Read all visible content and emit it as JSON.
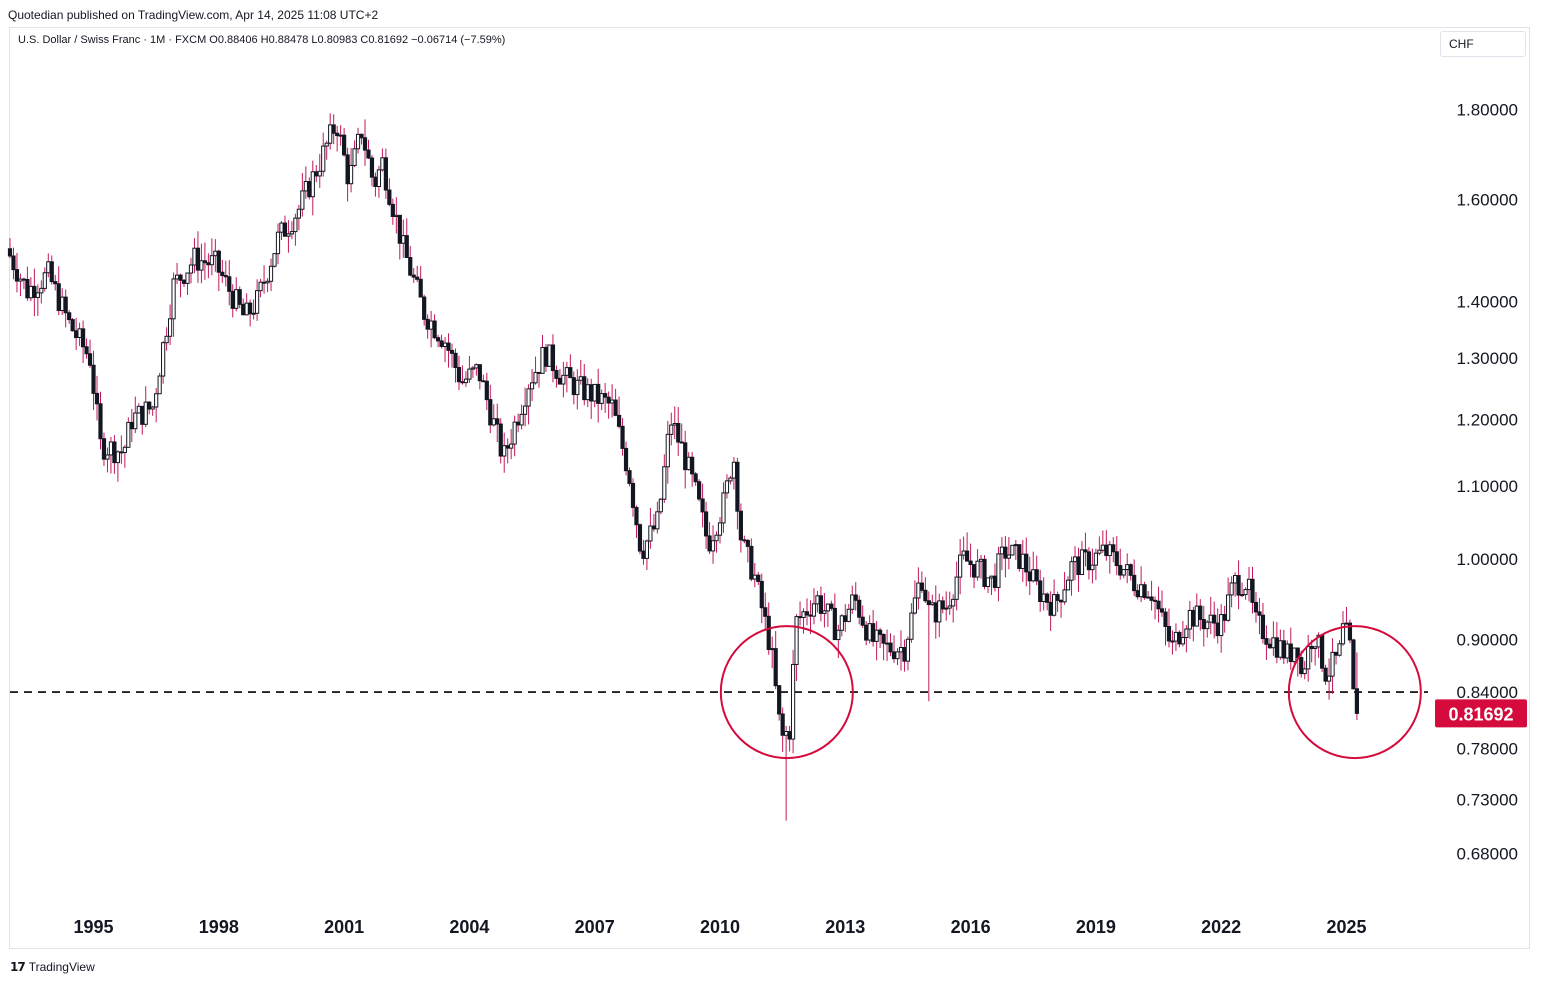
{
  "header": {
    "published": "Quotedian published on TradingView.com, Apr 14, 2025 11:08 UTC+2"
  },
  "legend": {
    "text": "U.S. Dollar / Swiss Franc · 1M · FXCM  O0.88406  H0.88478  L0.80983  C0.81692  −0.06714 (−7.59%)"
  },
  "currency": "CHF",
  "footer": {
    "logo": "17",
    "brand": "TradingView"
  },
  "colors": {
    "candle": "#131722",
    "wick": "#c2185b",
    "price_label": "#d50b3e",
    "circle": "#d50b3e",
    "level_line": "#000000"
  },
  "chart_data": {
    "type": "candlestick",
    "symbol": "USDCHF",
    "interval": "1M",
    "yscale": "log",
    "ylim": [
      0.64,
      1.92
    ],
    "xlim": [
      1993.0,
      2027.0
    ],
    "yticks": [
      1.8,
      1.6,
      1.4,
      1.3,
      1.2,
      1.1,
      1.0,
      0.9,
      0.84,
      0.78,
      0.73,
      0.68
    ],
    "ytick_labels": [
      "1.80000",
      "1.60000",
      "1.40000",
      "1.30000",
      "1.20000",
      "1.10000",
      "1.00000",
      "0.90000",
      "0.84000",
      "0.78000",
      "0.73000",
      "0.68000"
    ],
    "xticks": [
      1995,
      1998,
      2001,
      2004,
      2007,
      2010,
      2013,
      2016,
      2019,
      2022,
      2025
    ],
    "xtick_labels": [
      "1995",
      "1998",
      "2001",
      "2004",
      "2007",
      "2010",
      "2013",
      "2016",
      "2019",
      "2022",
      "2025"
    ],
    "last_price_label": "0.81692",
    "last_price": 0.81692,
    "horizontal_line": {
      "value": 0.84,
      "style": "dashed"
    },
    "circles": [
      {
        "t": 2011.6,
        "price": 0.84
      },
      {
        "t": 2025.2,
        "price": 0.84
      }
    ],
    "anchors": [
      [
        1993.0,
        1.5
      ],
      [
        1993.5,
        1.42
      ],
      [
        1994.0,
        1.45
      ],
      [
        1994.5,
        1.36
      ],
      [
        1995.0,
        1.3
      ],
      [
        1995.25,
        1.16
      ],
      [
        1995.8,
        1.15
      ],
      [
        1996.0,
        1.2
      ],
      [
        1996.5,
        1.22
      ],
      [
        1997.0,
        1.43
      ],
      [
        1997.5,
        1.48
      ],
      [
        1998.0,
        1.47
      ],
      [
        1998.7,
        1.37
      ],
      [
        1999.0,
        1.4
      ],
      [
        1999.5,
        1.52
      ],
      [
        2000.0,
        1.58
      ],
      [
        2000.5,
        1.68
      ],
      [
        2000.9,
        1.77
      ],
      [
        2001.2,
        1.64
      ],
      [
        2001.5,
        1.75
      ],
      [
        2001.8,
        1.63
      ],
      [
        2002.0,
        1.68
      ],
      [
        2002.5,
        1.5
      ],
      [
        2003.0,
        1.38
      ],
      [
        2003.5,
        1.33
      ],
      [
        2003.9,
        1.26
      ],
      [
        2004.3,
        1.28
      ],
      [
        2004.9,
        1.14
      ],
      [
        2005.5,
        1.26
      ],
      [
        2005.9,
        1.31
      ],
      [
        2006.3,
        1.27
      ],
      [
        2006.7,
        1.25
      ],
      [
        2007.0,
        1.24
      ],
      [
        2007.5,
        1.22
      ],
      [
        2007.9,
        1.12
      ],
      [
        2008.2,
        1.01
      ],
      [
        2008.6,
        1.05
      ],
      [
        2008.9,
        1.2
      ],
      [
        2009.2,
        1.15
      ],
      [
        2009.5,
        1.09
      ],
      [
        2009.8,
        1.02
      ],
      [
        2010.2,
        1.08
      ],
      [
        2010.4,
        1.15
      ],
      [
        2010.6,
        1.02
      ],
      [
        2010.9,
        0.98
      ],
      [
        2011.3,
        0.89
      ],
      [
        2011.55,
        0.79
      ],
      [
        2011.75,
        0.8
      ],
      [
        2011.9,
        0.92
      ],
      [
        2012.4,
        0.95
      ],
      [
        2012.9,
        0.91
      ],
      [
        2013.3,
        0.95
      ],
      [
        2013.7,
        0.9
      ],
      [
        2014.0,
        0.89
      ],
      [
        2014.5,
        0.89
      ],
      [
        2014.9,
        0.98
      ],
      [
        2015.1,
        0.93
      ],
      [
        2015.5,
        0.94
      ],
      [
        2015.9,
        1.0
      ],
      [
        2016.2,
        0.99
      ],
      [
        2016.6,
        0.97
      ],
      [
        2016.9,
        1.01
      ],
      [
        2017.3,
        1.0
      ],
      [
        2017.7,
        0.96
      ],
      [
        2018.1,
        0.94
      ],
      [
        2018.5,
        0.99
      ],
      [
        2019.0,
        1.0
      ],
      [
        2019.3,
        1.01
      ],
      [
        2019.7,
        0.99
      ],
      [
        2020.0,
        0.97
      ],
      [
        2020.4,
        0.96
      ],
      [
        2020.9,
        0.89
      ],
      [
        2021.3,
        0.93
      ],
      [
        2021.8,
        0.92
      ],
      [
        2022.1,
        0.92
      ],
      [
        2022.4,
        0.97
      ],
      [
        2022.7,
        0.97
      ],
      [
        2022.9,
        0.92
      ],
      [
        2023.3,
        0.9
      ],
      [
        2023.7,
        0.88
      ],
      [
        2023.9,
        0.9
      ],
      [
        2024.0,
        0.86
      ],
      [
        2024.3,
        0.91
      ],
      [
        2024.6,
        0.86
      ],
      [
        2024.9,
        0.88
      ],
      [
        2025.0,
        0.91
      ],
      [
        2025.15,
        0.9
      ],
      [
        2025.28,
        0.817
      ]
    ]
  }
}
